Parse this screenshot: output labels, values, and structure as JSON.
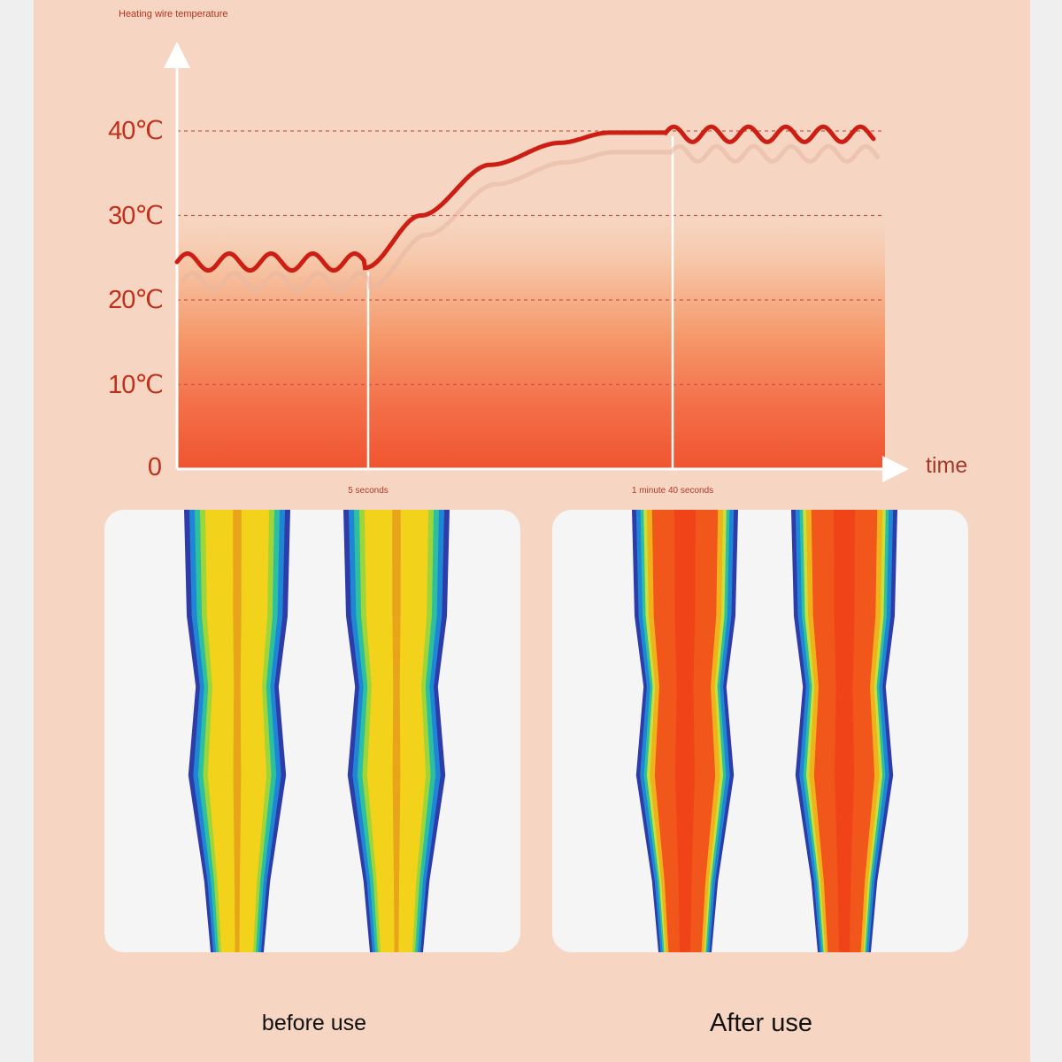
{
  "chart_data": {
    "type": "line",
    "title": "Heating wire temperature",
    "xlabel": "time",
    "ylabel": "",
    "yticks": [
      "0",
      "10℃",
      "20℃",
      "30℃",
      "40℃"
    ],
    "ylim": [
      0,
      40
    ],
    "xticks": [
      {
        "label": "5 seconds",
        "t": 0.27
      },
      {
        "label": "1 minute 40 seconds",
        "t": 0.7
      }
    ],
    "grid": "dashed horizontal at 10, 20, 30, 40",
    "series": [
      {
        "color": "#cc1e12",
        "points": [
          [
            0.0,
            24.8
          ],
          [
            0.27,
            23.8
          ],
          [
            0.35,
            30.0
          ],
          [
            0.45,
            36.0
          ],
          [
            0.55,
            38.6
          ],
          [
            0.62,
            39.8
          ],
          [
            0.7,
            39.8
          ],
          [
            1.0,
            40.0
          ]
        ],
        "oscillation": "wavy between about 23.5 and 25.5 before 5 seconds; wavy between about 39 and 40.5 after 1 minute 40 seconds"
      }
    ]
  },
  "thermal_images": [
    {
      "caption": "before use",
      "dominant_color": "#f2d21a"
    },
    {
      "caption": "After use",
      "dominant_color": "#f1561a"
    }
  ]
}
